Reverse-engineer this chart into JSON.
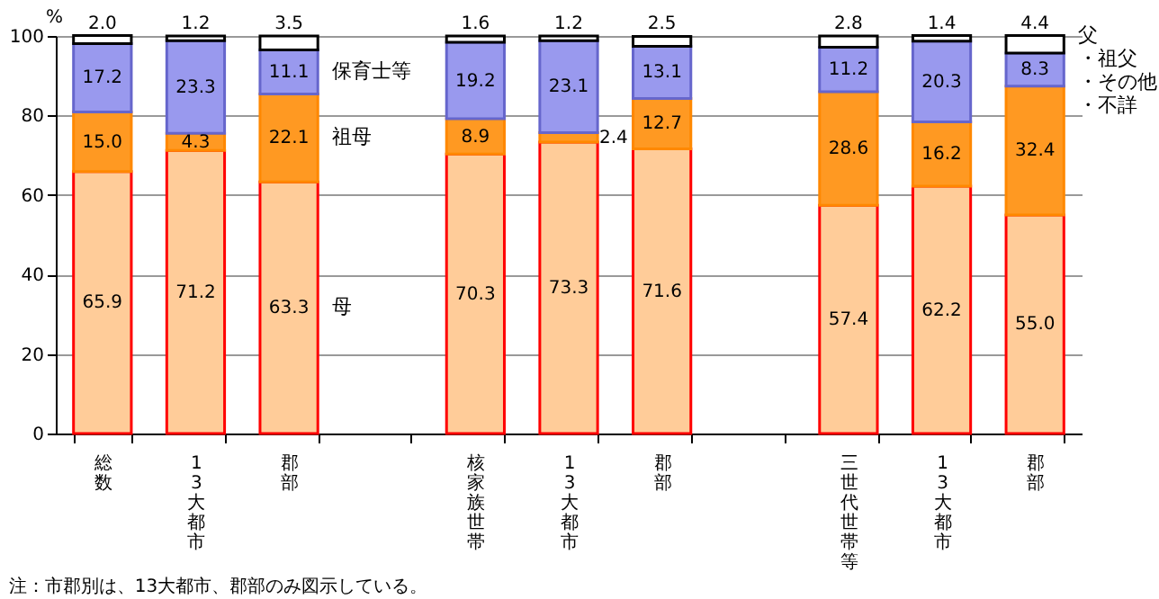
{
  "chart_data": {
    "type": "bar",
    "stacked": true,
    "categories": [
      "総数",
      "13大都市",
      "郡部",
      null,
      "核家族世帯",
      "13大都市",
      "郡部",
      null,
      "三世代世帯等",
      "13大都市",
      "郡部"
    ],
    "series": [
      {
        "name": "母",
        "color": "#ffcc99",
        "values": [
          65.9,
          71.2,
          63.3,
          null,
          70.3,
          73.3,
          71.6,
          null,
          57.4,
          62.2,
          55.0
        ],
        "value_labels": [
          "65.9",
          "71.2",
          "63.3",
          null,
          "70.3",
          "73.3",
          "71.6",
          null,
          "57.4",
          "62.2",
          "55.0"
        ]
      },
      {
        "name": "祖母",
        "color": "#ff9922",
        "values": [
          15.0,
          4.3,
          22.1,
          null,
          8.9,
          2.4,
          12.7,
          null,
          28.6,
          16.2,
          32.4
        ],
        "value_labels": [
          "15.0",
          "4.3",
          "22.1",
          null,
          "8.9",
          "2.4",
          "12.7",
          null,
          "28.6",
          "16.2",
          "32.4"
        ]
      },
      {
        "name": "保育士等",
        "color": "#9999ee",
        "values": [
          17.2,
          23.3,
          11.1,
          null,
          19.2,
          23.1,
          13.1,
          null,
          11.2,
          20.3,
          8.3
        ],
        "value_labels": [
          "17.2",
          "23.3",
          "11.1",
          null,
          "19.2",
          "23.1",
          "13.1",
          null,
          "11.2",
          "20.3",
          "8.3"
        ]
      },
      {
        "name": "父・祖父・その他・不詳",
        "color": "#ffffff",
        "values": [
          2.0,
          1.2,
          3.5,
          null,
          1.6,
          1.2,
          2.5,
          null,
          2.8,
          1.4,
          4.4
        ],
        "value_labels": [
          "2.0",
          "1.2",
          "3.5",
          null,
          "1.6",
          "1.2",
          "2.5",
          null,
          "2.8",
          "1.4",
          "4.4"
        ]
      }
    ],
    "ylim": [
      0,
      100
    ],
    "yticks": [
      0,
      20,
      40,
      60,
      80,
      100
    ],
    "ylabel": "%",
    "grid": "y",
    "legend": false,
    "annotations": [
      "注：市郡別は、13大都市、郡部のみ図示している。"
    ]
  }
}
